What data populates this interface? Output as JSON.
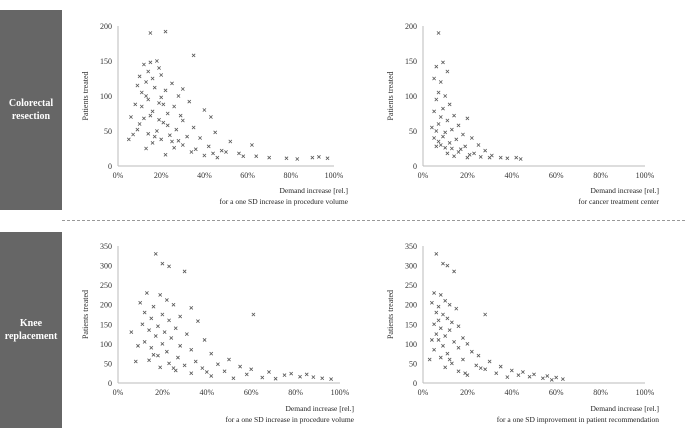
{
  "rows": [
    {
      "label_line1": "Colorectal",
      "label_line2": "resection"
    },
    {
      "label_line1": "Knee",
      "label_line2": "replacement"
    }
  ],
  "colors": {
    "label_bg": "#666666",
    "marker": "#555555",
    "axis": "#bbbbbb"
  },
  "chart_data": [
    {
      "type": "scatter",
      "marker": "x",
      "ylabel": "Patients treated",
      "xlabel_line1": "Demand increase [rel.]",
      "xlabel_line2": "for a one SD increase in procedure volume",
      "xlim": [
        0,
        1
      ],
      "ylim": [
        0,
        200
      ],
      "xticks": [
        "0%",
        "20%",
        "40%",
        "60%",
        "80%",
        "100%"
      ],
      "yticks": [
        "0",
        "50",
        "100",
        "150",
        "200"
      ],
      "points": [
        [
          0.15,
          190
        ],
        [
          0.22,
          192
        ],
        [
          0.35,
          158
        ],
        [
          0.18,
          150
        ],
        [
          0.15,
          148
        ],
        [
          0.12,
          145
        ],
        [
          0.19,
          140
        ],
        [
          0.14,
          135
        ],
        [
          0.2,
          130
        ],
        [
          0.1,
          128
        ],
        [
          0.16,
          125
        ],
        [
          0.13,
          120
        ],
        [
          0.25,
          118
        ],
        [
          0.09,
          115
        ],
        [
          0.17,
          112
        ],
        [
          0.3,
          110
        ],
        [
          0.22,
          108
        ],
        [
          0.11,
          105
        ],
        [
          0.28,
          100
        ],
        [
          0.2,
          98
        ],
        [
          0.14,
          95
        ],
        [
          0.33,
          92
        ],
        [
          0.19,
          90
        ],
        [
          0.08,
          88
        ],
        [
          0.26,
          85
        ],
        [
          0.4,
          80
        ],
        [
          0.16,
          78
        ],
        [
          0.23,
          75
        ],
        [
          0.43,
          70
        ],
        [
          0.12,
          68
        ],
        [
          0.3,
          65
        ],
        [
          0.21,
          62
        ],
        [
          0.1,
          60
        ],
        [
          0.35,
          55
        ],
        [
          0.27,
          52
        ],
        [
          0.18,
          50
        ],
        [
          0.45,
          48
        ],
        [
          0.14,
          46
        ],
        [
          0.24,
          44
        ],
        [
          0.38,
          40
        ],
        [
          0.2,
          38
        ],
        [
          0.52,
          35
        ],
        [
          0.16,
          33
        ],
        [
          0.3,
          30
        ],
        [
          0.42,
          28
        ],
        [
          0.62,
          30
        ],
        [
          0.26,
          26
        ],
        [
          0.13,
          25
        ],
        [
          0.48,
          22
        ],
        [
          0.34,
          20
        ],
        [
          0.56,
          18
        ],
        [
          0.22,
          16
        ],
        [
          0.4,
          15
        ],
        [
          0.64,
          14
        ],
        [
          0.7,
          12
        ],
        [
          0.78,
          11
        ],
        [
          0.83,
          10
        ],
        [
          0.93,
          13
        ],
        [
          0.97,
          11
        ],
        [
          0.9,
          12
        ],
        [
          0.28,
          36
        ],
        [
          0.32,
          42
        ],
        [
          0.36,
          24
        ],
        [
          0.44,
          18
        ],
        [
          0.5,
          20
        ],
        [
          0.58,
          14
        ],
        [
          0.11,
          85
        ],
        [
          0.15,
          72
        ],
        [
          0.19,
          66
        ],
        [
          0.23,
          58
        ],
        [
          0.17,
          42
        ],
        [
          0.25,
          35
        ],
        [
          0.05,
          38
        ],
        [
          0.07,
          45
        ],
        [
          0.09,
          52
        ],
        [
          0.06,
          70
        ],
        [
          0.13,
          100
        ],
        [
          0.21,
          88
        ],
        [
          0.29,
          72
        ],
        [
          0.46,
          12
        ]
      ]
    },
    {
      "type": "scatter",
      "marker": "x",
      "ylabel": "Patients treated",
      "xlabel_line1": "Demand increase [rel.]",
      "xlabel_line2": "for cancer treatment center",
      "xlim": [
        0,
        1
      ],
      "ylim": [
        0,
        200
      ],
      "xticks": [
        "0%",
        "20%",
        "40%",
        "60%",
        "80%",
        "100%"
      ],
      "yticks": [
        "0",
        "50",
        "100",
        "150",
        "200"
      ],
      "points": [
        [
          0.07,
          190
        ],
        [
          0.09,
          148
        ],
        [
          0.06,
          142
        ],
        [
          0.11,
          135
        ],
        [
          0.05,
          125
        ],
        [
          0.08,
          120
        ],
        [
          0.07,
          105
        ],
        [
          0.1,
          100
        ],
        [
          0.06,
          95
        ],
        [
          0.12,
          88
        ],
        [
          0.09,
          82
        ],
        [
          0.05,
          78
        ],
        [
          0.14,
          72
        ],
        [
          0.08,
          70
        ],
        [
          0.11,
          65
        ],
        [
          0.07,
          60
        ],
        [
          0.16,
          58
        ],
        [
          0.2,
          68
        ],
        [
          0.13,
          52
        ],
        [
          0.06,
          50
        ],
        [
          0.1,
          48
        ],
        [
          0.18,
          45
        ],
        [
          0.09,
          42
        ],
        [
          0.22,
          40
        ],
        [
          0.15,
          38
        ],
        [
          0.07,
          35
        ],
        [
          0.12,
          33
        ],
        [
          0.25,
          30
        ],
        [
          0.19,
          28
        ],
        [
          0.1,
          26
        ],
        [
          0.28,
          22
        ],
        [
          0.16,
          20
        ],
        [
          0.23,
          18
        ],
        [
          0.31,
          15
        ],
        [
          0.14,
          14
        ],
        [
          0.35,
          12
        ],
        [
          0.38,
          11
        ],
        [
          0.42,
          12
        ],
        [
          0.44,
          10
        ],
        [
          0.2,
          12
        ],
        [
          0.26,
          13
        ],
        [
          0.08,
          30
        ],
        [
          0.05,
          40
        ],
        [
          0.04,
          55
        ],
        [
          0.13,
          25
        ],
        [
          0.17,
          24
        ],
        [
          0.21,
          16
        ],
        [
          0.11,
          18
        ],
        [
          0.3,
          12
        ],
        [
          0.06,
          28
        ]
      ]
    },
    {
      "type": "scatter",
      "marker": "x",
      "ylabel": "Patients treated",
      "xlabel_line1": "Demand increase [rel.]",
      "xlabel_line2": "for a one SD increase in procedure volume",
      "xlim": [
        0,
        1
      ],
      "ylim": [
        0,
        350
      ],
      "xticks": [
        "0%",
        "20%",
        "40%",
        "60%",
        "80%",
        "100%"
      ],
      "yticks": [
        "0",
        "50",
        "100",
        "150",
        "200",
        "250",
        "300",
        "350"
      ],
      "points": [
        [
          0.17,
          330
        ],
        [
          0.2,
          305
        ],
        [
          0.23,
          298
        ],
        [
          0.3,
          285
        ],
        [
          0.13,
          230
        ],
        [
          0.19,
          225
        ],
        [
          0.22,
          212
        ],
        [
          0.1,
          205
        ],
        [
          0.25,
          200
        ],
        [
          0.16,
          195
        ],
        [
          0.33,
          192
        ],
        [
          0.12,
          180
        ],
        [
          0.2,
          175
        ],
        [
          0.28,
          170
        ],
        [
          0.61,
          175
        ],
        [
          0.15,
          165
        ],
        [
          0.23,
          160
        ],
        [
          0.36,
          158
        ],
        [
          0.11,
          150
        ],
        [
          0.18,
          145
        ],
        [
          0.26,
          140
        ],
        [
          0.14,
          135
        ],
        [
          0.21,
          130
        ],
        [
          0.31,
          125
        ],
        [
          0.17,
          120
        ],
        [
          0.24,
          115
        ],
        [
          0.39,
          110
        ],
        [
          0.12,
          105
        ],
        [
          0.2,
          100
        ],
        [
          0.28,
          95
        ],
        [
          0.15,
          90
        ],
        [
          0.33,
          85
        ],
        [
          0.22,
          80
        ],
        [
          0.42,
          75
        ],
        [
          0.18,
          70
        ],
        [
          0.27,
          65
        ],
        [
          0.5,
          60
        ],
        [
          0.14,
          58
        ],
        [
          0.35,
          55
        ],
        [
          0.23,
          50
        ],
        [
          0.45,
          48
        ],
        [
          0.3,
          45
        ],
        [
          0.55,
          42
        ],
        [
          0.19,
          40
        ],
        [
          0.38,
          38
        ],
        [
          0.6,
          35
        ],
        [
          0.26,
          32
        ],
        [
          0.48,
          30
        ],
        [
          0.68,
          28
        ],
        [
          0.33,
          25
        ],
        [
          0.58,
          22
        ],
        [
          0.75,
          20
        ],
        [
          0.42,
          18
        ],
        [
          0.82,
          16
        ],
        [
          0.65,
          14
        ],
        [
          0.88,
          15
        ],
        [
          0.92,
          12
        ],
        [
          0.96,
          10
        ],
        [
          0.52,
          12
        ],
        [
          0.71,
          11
        ],
        [
          0.08,
          55
        ],
        [
          0.06,
          130
        ],
        [
          0.09,
          95
        ],
        [
          0.16,
          72
        ],
        [
          0.25,
          38
        ],
        [
          0.4,
          28
        ],
        [
          0.78,
          24
        ],
        [
          0.85,
          22
        ]
      ]
    },
    {
      "type": "scatter",
      "marker": "x",
      "ylabel": "Patients treated",
      "xlabel_line1": "Demand increase [rel.]",
      "xlabel_line2": "for a one SD improvement in patient recommendation",
      "xlim": [
        0,
        1
      ],
      "ylim": [
        0,
        350
      ],
      "xticks": [
        "0%",
        "20%",
        "40%",
        "60%",
        "80%",
        "100%"
      ],
      "yticks": [
        "0",
        "50",
        "100",
        "150",
        "200",
        "250",
        "300",
        "350"
      ],
      "points": [
        [
          0.06,
          330
        ],
        [
          0.09,
          305
        ],
        [
          0.11,
          300
        ],
        [
          0.14,
          285
        ],
        [
          0.05,
          230
        ],
        [
          0.08,
          225
        ],
        [
          0.1,
          210
        ],
        [
          0.04,
          205
        ],
        [
          0.12,
          200
        ],
        [
          0.07,
          195
        ],
        [
          0.15,
          190
        ],
        [
          0.06,
          180
        ],
        [
          0.09,
          175
        ],
        [
          0.28,
          175
        ],
        [
          0.11,
          165
        ],
        [
          0.07,
          160
        ],
        [
          0.13,
          155
        ],
        [
          0.05,
          150
        ],
        [
          0.16,
          145
        ],
        [
          0.08,
          140
        ],
        [
          0.12,
          135
        ],
        [
          0.06,
          125
        ],
        [
          0.1,
          120
        ],
        [
          0.18,
          115
        ],
        [
          0.07,
          110
        ],
        [
          0.14,
          105
        ],
        [
          0.2,
          100
        ],
        [
          0.09,
          95
        ],
        [
          0.16,
          90
        ],
        [
          0.05,
          85
        ],
        [
          0.22,
          80
        ],
        [
          0.11,
          75
        ],
        [
          0.25,
          70
        ],
        [
          0.08,
          65
        ],
        [
          0.18,
          60
        ],
        [
          0.3,
          55
        ],
        [
          0.13,
          50
        ],
        [
          0.24,
          45
        ],
        [
          0.35,
          42
        ],
        [
          0.1,
          40
        ],
        [
          0.28,
          35
        ],
        [
          0.4,
          32
        ],
        [
          0.16,
          30
        ],
        [
          0.45,
          28
        ],
        [
          0.33,
          25
        ],
        [
          0.5,
          22
        ],
        [
          0.2,
          20
        ],
        [
          0.56,
          18
        ],
        [
          0.38,
          15
        ],
        [
          0.6,
          14
        ],
        [
          0.63,
          10
        ],
        [
          0.54,
          12
        ],
        [
          0.43,
          20
        ],
        [
          0.26,
          38
        ],
        [
          0.03,
          60
        ],
        [
          0.04,
          110
        ],
        [
          0.12,
          60
        ],
        [
          0.19,
          25
        ],
        [
          0.48,
          16
        ],
        [
          0.58,
          8
        ]
      ]
    }
  ]
}
